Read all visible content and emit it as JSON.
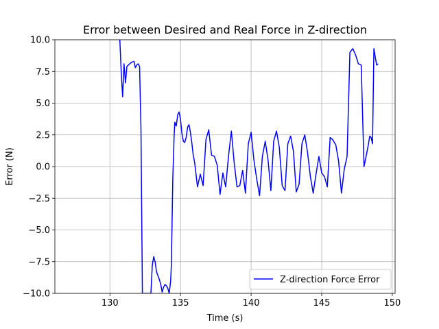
{
  "chart_data": {
    "type": "line",
    "title": "Error between Desired and Real Force in Z-direction",
    "xlabel": "Time (s)",
    "ylabel": "Error (N)",
    "xlim": [
      126.1,
      150.2
    ],
    "ylim": [
      -10.0,
      10.0
    ],
    "xticks": [
      130,
      135,
      140,
      145,
      150
    ],
    "xtick_labels": [
      "130",
      "135",
      "140",
      "145",
      "150"
    ],
    "yticks": [
      -10.0,
      -7.5,
      -5.0,
      -2.5,
      0.0,
      2.5,
      5.0,
      7.5,
      10.0
    ],
    "ytick_labels": [
      "−10.0",
      "−7.5",
      "−5.0",
      "−2.5",
      "0.0",
      "2.5",
      "5.0",
      "7.5",
      "10.0"
    ],
    "grid": true,
    "legend_position": "lower-right",
    "series": [
      {
        "name": "Z-direction Force Error",
        "color": "#0000ff",
        "x": [
          130.7,
          130.8,
          130.9,
          131.0,
          131.1,
          131.2,
          131.3,
          131.5,
          131.7,
          131.8,
          131.9,
          132.0,
          132.1,
          132.2,
          132.3,
          132.45,
          132.5,
          132.52,
          132.6,
          132.7,
          132.9,
          133.0,
          133.1,
          133.2,
          133.3,
          133.4,
          133.5,
          133.6,
          133.7,
          133.8,
          133.9,
          134.0,
          134.1,
          134.2,
          134.3,
          134.35,
          134.45,
          134.55,
          134.6,
          134.7,
          134.8,
          134.9,
          135.0,
          135.1,
          135.2,
          135.3,
          135.4,
          135.5,
          135.6,
          135.7,
          135.8,
          135.9,
          136.0,
          136.2,
          136.4,
          136.6,
          136.8,
          137.0,
          137.2,
          137.4,
          137.6,
          137.8,
          138.0,
          138.2,
          138.4,
          138.6,
          138.8,
          139.0,
          139.2,
          139.4,
          139.6,
          139.8,
          140.0,
          140.2,
          140.4,
          140.6,
          140.8,
          141.0,
          141.2,
          141.4,
          141.6,
          141.8,
          142.0,
          142.2,
          142.4,
          142.6,
          142.8,
          143.0,
          143.2,
          143.4,
          143.6,
          143.8,
          144.0,
          144.2,
          144.4,
          144.6,
          144.8,
          145.0,
          145.2,
          145.4,
          145.6,
          145.8,
          146.0,
          146.2,
          146.4,
          146.6,
          146.8,
          147.0,
          147.2,
          147.4,
          147.6,
          147.8,
          148.0,
          148.2,
          148.3,
          148.4,
          148.5,
          148.6,
          148.7,
          148.8,
          148.9,
          149.0
        ],
        "y": [
          10.0,
          7.5,
          5.5,
          8.1,
          6.6,
          7.9,
          8.0,
          8.2,
          8.3,
          7.8,
          8.0,
          8.1,
          7.9,
          3.0,
          -10.0,
          -10.0,
          -10.0,
          -10.0,
          -10.0,
          -10.0,
          -10.0,
          -7.8,
          -7.1,
          -7.5,
          -8.3,
          -8.6,
          -8.9,
          -9.3,
          -9.9,
          -9.5,
          -9.3,
          -9.4,
          -9.6,
          -10.0,
          -9.0,
          -7.8,
          -1.0,
          2.5,
          3.5,
          3.2,
          4.1,
          4.3,
          3.7,
          2.6,
          2.0,
          1.9,
          2.3,
          3.1,
          3.3,
          2.7,
          1.9,
          0.9,
          0.3,
          -1.6,
          -0.6,
          -1.5,
          2.1,
          2.9,
          0.9,
          0.8,
          0.1,
          -2.2,
          -0.5,
          -1.6,
          0.8,
          2.8,
          0.3,
          -1.6,
          -1.5,
          -0.3,
          -2.1,
          1.8,
          2.7,
          0.5,
          -1.0,
          -2.3,
          0.8,
          2.0,
          0.5,
          -1.9,
          2.0,
          2.8,
          1.5,
          -1.5,
          -1.9,
          1.8,
          2.4,
          1.2,
          -2.0,
          -1.4,
          1.8,
          2.5,
          1.1,
          -0.8,
          -2.1,
          -0.6,
          0.8,
          -0.5,
          -0.8,
          -1.6,
          2.3,
          2.1,
          1.7,
          0.4,
          -2.1,
          -0.2,
          0.8,
          9.0,
          9.3,
          8.8,
          8.1,
          8.0,
          0.0,
          1.1,
          1.7,
          2.4,
          2.3,
          1.8,
          9.3,
          8.6,
          8.0,
          8.1
        ],
        "linewidth": 1.5
      }
    ]
  }
}
